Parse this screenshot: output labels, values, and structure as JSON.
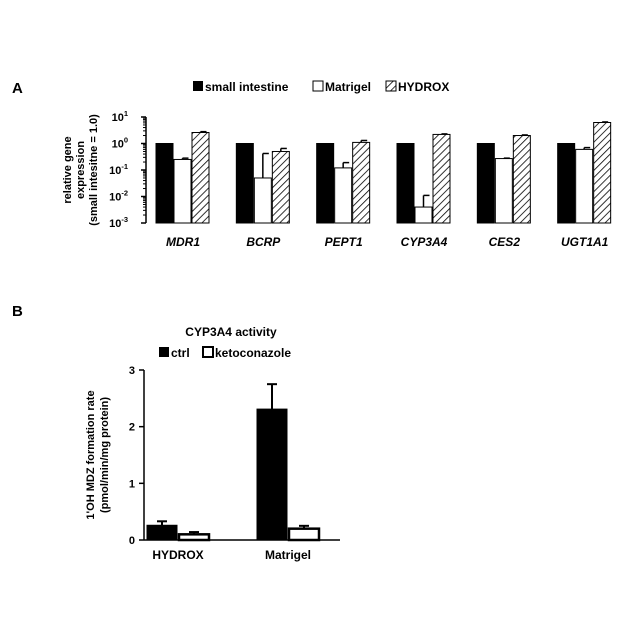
{
  "colors": {
    "black": "#000000",
    "white": "#ffffff",
    "hatch": "#000000"
  },
  "panel_a": {
    "label": "A",
    "legend": [
      "small intestine",
      "Matrigel",
      "HYDROX"
    ],
    "ylabel_line1": "relative gene",
    "ylabel_line2": "expression",
    "ylabel_line3": "(small intesitne = 1.0)"
  },
  "panel_b": {
    "label": "B",
    "title": "CYP3A4 activity",
    "legend": [
      "ctrl",
      "ketoconazole"
    ],
    "ylabel_line1": "1'OH MDZ formation rate",
    "ylabel_line2": "(pmol/min/mg protein)"
  },
  "chart_data": [
    {
      "type": "bar",
      "panel": "A",
      "title": "",
      "xlabel": "",
      "ylabel": "relative gene expression (small intesitne = 1.0)",
      "yscale": "log",
      "ylim": [
        0.001,
        10
      ],
      "yticks": [
        {
          "value": 0.001,
          "base": "10",
          "exp": "-3"
        },
        {
          "value": 0.01,
          "base": "10",
          "exp": "-2"
        },
        {
          "value": 0.1,
          "base": "10",
          "exp": "-1"
        },
        {
          "value": 1,
          "base": "10",
          "exp": "0"
        },
        {
          "value": 10,
          "base": "10",
          "exp": "1"
        }
      ],
      "categories": [
        "MDR1",
        "BCRP",
        "PEPT1",
        "CYP3A4",
        "CES2",
        "UGT1A1"
      ],
      "series": [
        {
          "name": "small intestine",
          "fill": "solid",
          "values": [
            1,
            1,
            1,
            1,
            1,
            1
          ],
          "errors_upper": [
            null,
            null,
            null,
            null,
            null,
            null
          ]
        },
        {
          "name": "Matrigel",
          "fill": "open",
          "values": [
            0.25,
            0.05,
            0.12,
            0.004,
            0.27,
            0.6
          ],
          "errors_upper": [
            0.28,
            0.42,
            0.19,
            0.011,
            0.28,
            0.7
          ]
        },
        {
          "name": "HYDROX",
          "fill": "hatched",
          "values": [
            2.6,
            0.5,
            1.1,
            2.2,
            2.0,
            6.2
          ],
          "errors_upper": [
            2.8,
            0.65,
            1.3,
            2.3,
            2.1,
            6.5
          ]
        }
      ],
      "legend_position": "top",
      "grid": false
    },
    {
      "type": "bar",
      "panel": "B",
      "title": "CYP3A4 activity",
      "xlabel": "",
      "ylabel": "1'OH MDZ formation rate (pmol/min/mg protein)",
      "ylim": [
        0,
        3
      ],
      "yticks": [
        0,
        1,
        2,
        3
      ],
      "categories": [
        "HYDROX",
        "Matrigel"
      ],
      "series": [
        {
          "name": "ctrl",
          "fill": "solid",
          "values": [
            0.26,
            2.31
          ],
          "errors_upper": [
            0.33,
            2.75
          ]
        },
        {
          "name": "ketoconazole",
          "fill": "open",
          "values": [
            0.1,
            0.2
          ],
          "errors_upper": [
            0.14,
            0.25
          ]
        }
      ],
      "legend_position": "top",
      "grid": false
    }
  ]
}
